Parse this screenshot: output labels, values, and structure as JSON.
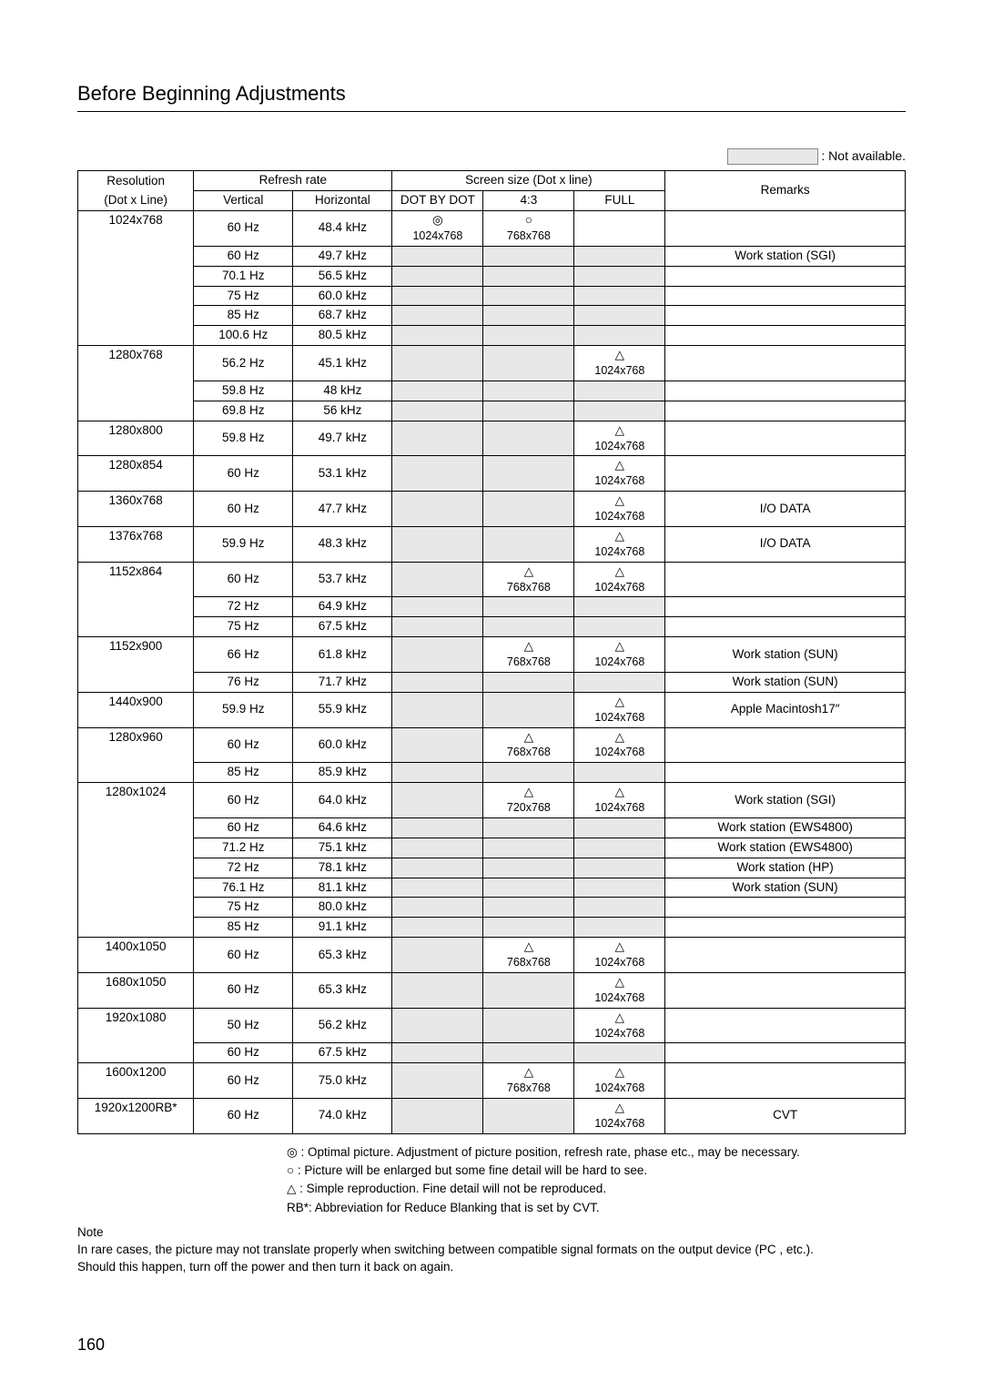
{
  "title": "Before Beginning Adjustments",
  "legend_not_available": ": Not available.",
  "header": {
    "resolution_l1": "Resolution",
    "resolution_l2": "(Dot x Line)",
    "refresh_rate": "Refresh rate",
    "screen_size": "Screen size (Dot x line)",
    "remarks": "Remarks",
    "vertical": "Vertical",
    "horizontal": "Horizontal",
    "dotbydot": "DOT BY DOT",
    "r43": "4:3",
    "full": "FULL"
  },
  "symbols": {
    "optimal": "◎",
    "circle": "○",
    "triangle": "△"
  },
  "legend_notes": {
    "optimal": "◎ : Optimal picture. Adjustment of picture position, refresh rate, phase etc., may be necessary.",
    "circle": "○ : Picture will be enlarged but some fine detail will be hard to see.",
    "triangle": "△ : Simple reproduction. Fine detail will not be reproduced.",
    "rb": "RB*: Abbreviation for Reduce Blanking that is set by CVT."
  },
  "note_header": "Note",
  "note_body_l1": "In rare cases, the picture may not translate properly when switching between compatible signal formats on the output device (PC , etc.).",
  "note_body_l2": "Should this happen, turn off the  power and then turn it back on again.",
  "page_number": "160",
  "rows": [
    {
      "res": "1024x768",
      "v": "60 Hz",
      "h": "48.4 kHz",
      "dot": [
        "◎",
        "1024x768"
      ],
      "r43": [
        "○",
        "768x768"
      ],
      "full": [],
      "rem": "",
      "firstRowspan": 6
    },
    {
      "v": "60 Hz",
      "h": "49.7 kHz",
      "rem": "Work station (SGI)",
      "continued": true,
      "shadeDot": true,
      "shade43": true,
      "shadeFull": true
    },
    {
      "v": "70.1 Hz",
      "h": "56.5 kHz",
      "rem": "",
      "continued": true,
      "shadeDot": true,
      "shade43": true,
      "shadeFull": true
    },
    {
      "v": "75 Hz",
      "h": "60.0 kHz",
      "rem": "",
      "continued": true,
      "shadeDot": true,
      "shade43": true,
      "shadeFull": true
    },
    {
      "v": "85 Hz",
      "h": "68.7 kHz",
      "rem": "",
      "continued": true,
      "shadeDot": true,
      "shade43": true,
      "shadeFull": true
    },
    {
      "v": "100.6 Hz",
      "h": "80.5 kHz",
      "rem": "",
      "continued": true,
      "shadeDot": true,
      "shade43": true,
      "shadeFull": true
    },
    {
      "res": "1280x768",
      "v": "56.2 Hz",
      "h": "45.1 kHz",
      "full": [
        "△",
        "1024x768"
      ],
      "rem": "",
      "firstRowspan": 3,
      "shadeDot": true,
      "shade43": true
    },
    {
      "v": "59.8 Hz",
      "h": "48 kHz",
      "rem": "",
      "continued": true,
      "shadeDot": true,
      "shade43": true,
      "shadeFull": true
    },
    {
      "v": "69.8 Hz",
      "h": "56 kHz",
      "rem": "",
      "continued": true,
      "shadeDot": true,
      "shade43": true,
      "shadeFull": true
    },
    {
      "res": "1280x800",
      "v": "59.8 Hz",
      "h": "49.7 kHz",
      "full": [
        "△",
        "1024x768"
      ],
      "rem": "",
      "shadeDot": true,
      "shade43": true
    },
    {
      "res": "1280x854",
      "v": "60 Hz",
      "h": "53.1 kHz",
      "full": [
        "△",
        "1024x768"
      ],
      "rem": "",
      "shadeDot": true,
      "shade43": true
    },
    {
      "res": "1360x768",
      "v": "60 Hz",
      "h": "47.7 kHz",
      "full": [
        "△",
        "1024x768"
      ],
      "rem": "I/O DATA",
      "shadeDot": true,
      "shade43": true
    },
    {
      "res": "1376x768",
      "v": "59.9 Hz",
      "h": "48.3 kHz",
      "full": [
        "△",
        "1024x768"
      ],
      "rem": "I/O DATA",
      "shadeDot": true,
      "shade43": true
    },
    {
      "res": "1152x864",
      "v": "60 Hz",
      "h": "53.7 kHz",
      "r43": [
        "△",
        "768x768"
      ],
      "full": [
        "△",
        "1024x768"
      ],
      "rem": "",
      "firstRowspan": 3,
      "shadeDot": true
    },
    {
      "v": "72 Hz",
      "h": "64.9 kHz",
      "rem": "",
      "continued": true,
      "shadeDot": true,
      "shade43": true,
      "shadeFull": true
    },
    {
      "v": "75 Hz",
      "h": "67.5 kHz",
      "rem": "",
      "continued": true,
      "shadeDot": true,
      "shade43": true,
      "shadeFull": true
    },
    {
      "res": "1152x900",
      "v": "66 Hz",
      "h": "61.8 kHz",
      "r43": [
        "△",
        "768x768"
      ],
      "full": [
        "△",
        "1024x768"
      ],
      "rem": "Work station (SUN)",
      "firstRowspan": 2,
      "shadeDot": true
    },
    {
      "v": "76 Hz",
      "h": "71.7 kHz",
      "rem": "Work station (SUN)",
      "continued": true,
      "shadeDot": true,
      "shade43": true,
      "shadeFull": true
    },
    {
      "res": "1440x900",
      "v": "59.9 Hz",
      "h": "55.9 kHz",
      "full": [
        "△",
        "1024x768"
      ],
      "rem": "Apple Macintosh17″",
      "shadeDot": true,
      "shade43": true
    },
    {
      "res": "1280x960",
      "v": "60 Hz",
      "h": "60.0 kHz",
      "r43": [
        "△",
        "768x768"
      ],
      "full": [
        "△",
        "1024x768"
      ],
      "rem": "",
      "firstRowspan": 2,
      "shadeDot": true
    },
    {
      "v": "85 Hz",
      "h": "85.9 kHz",
      "rem": "",
      "continued": true,
      "shadeDot": true,
      "shade43": true,
      "shadeFull": true
    },
    {
      "res": "1280x1024",
      "v": "60 Hz",
      "h": "64.0 kHz",
      "r43": [
        "△",
        "720x768"
      ],
      "full": [
        "△",
        "1024x768"
      ],
      "rem": "Work station (SGI)",
      "firstRowspan": 7,
      "shadeDot": true
    },
    {
      "v": "60 Hz",
      "h": "64.6 kHz",
      "rem": "Work station (EWS4800)",
      "continued": true,
      "shadeDot": true,
      "shade43": true,
      "shadeFull": true
    },
    {
      "v": "71.2 Hz",
      "h": "75.1 kHz",
      "rem": "Work station (EWS4800)",
      "continued": true,
      "shadeDot": true,
      "shade43": true,
      "shadeFull": true
    },
    {
      "v": "72 Hz",
      "h": "78.1 kHz",
      "rem": "Work station (HP)",
      "continued": true,
      "shadeDot": true,
      "shade43": true,
      "shadeFull": true
    },
    {
      "v": "76.1 Hz",
      "h": "81.1 kHz",
      "rem": "Work station (SUN)",
      "continued": true,
      "shadeDot": true,
      "shade43": true,
      "shadeFull": true
    },
    {
      "v": "75 Hz",
      "h": "80.0 kHz",
      "rem": "",
      "continued": true,
      "shadeDot": true,
      "shade43": true,
      "shadeFull": true
    },
    {
      "v": "85 Hz",
      "h": "91.1 kHz",
      "rem": "",
      "continued": true,
      "shadeDot": true,
      "shade43": true,
      "shadeFull": true
    },
    {
      "res": "1400x1050",
      "v": "60 Hz",
      "h": "65.3 kHz",
      "r43": [
        "△",
        "768x768"
      ],
      "full": [
        "△",
        "1024x768"
      ],
      "rem": "",
      "shadeDot": true
    },
    {
      "res": "1680x1050",
      "v": "60 Hz",
      "h": "65.3 kHz",
      "full": [
        "△",
        "1024x768"
      ],
      "rem": "",
      "shadeDot": true,
      "shade43": true
    },
    {
      "res": "1920x1080",
      "v": "50 Hz",
      "h": "56.2 kHz",
      "full": [
        "△",
        "1024x768"
      ],
      "rem": "",
      "firstRowspan": 2,
      "shadeDot": true,
      "shade43": true
    },
    {
      "v": "60 Hz",
      "h": "67.5 kHz",
      "rem": "",
      "continued": true,
      "shadeDot": true,
      "shade43": true,
      "shadeFull": true
    },
    {
      "res": "1600x1200",
      "v": "60 Hz",
      "h": "75.0 kHz",
      "r43": [
        "△",
        "768x768"
      ],
      "full": [
        "△",
        "1024x768"
      ],
      "rem": "",
      "shadeDot": true
    },
    {
      "res": "1920x1200RB*",
      "v": "60 Hz",
      "h": "74.0 kHz",
      "full": [
        "△",
        "1024x768"
      ],
      "rem": "CVT",
      "shadeDot": true,
      "shade43": true
    }
  ]
}
